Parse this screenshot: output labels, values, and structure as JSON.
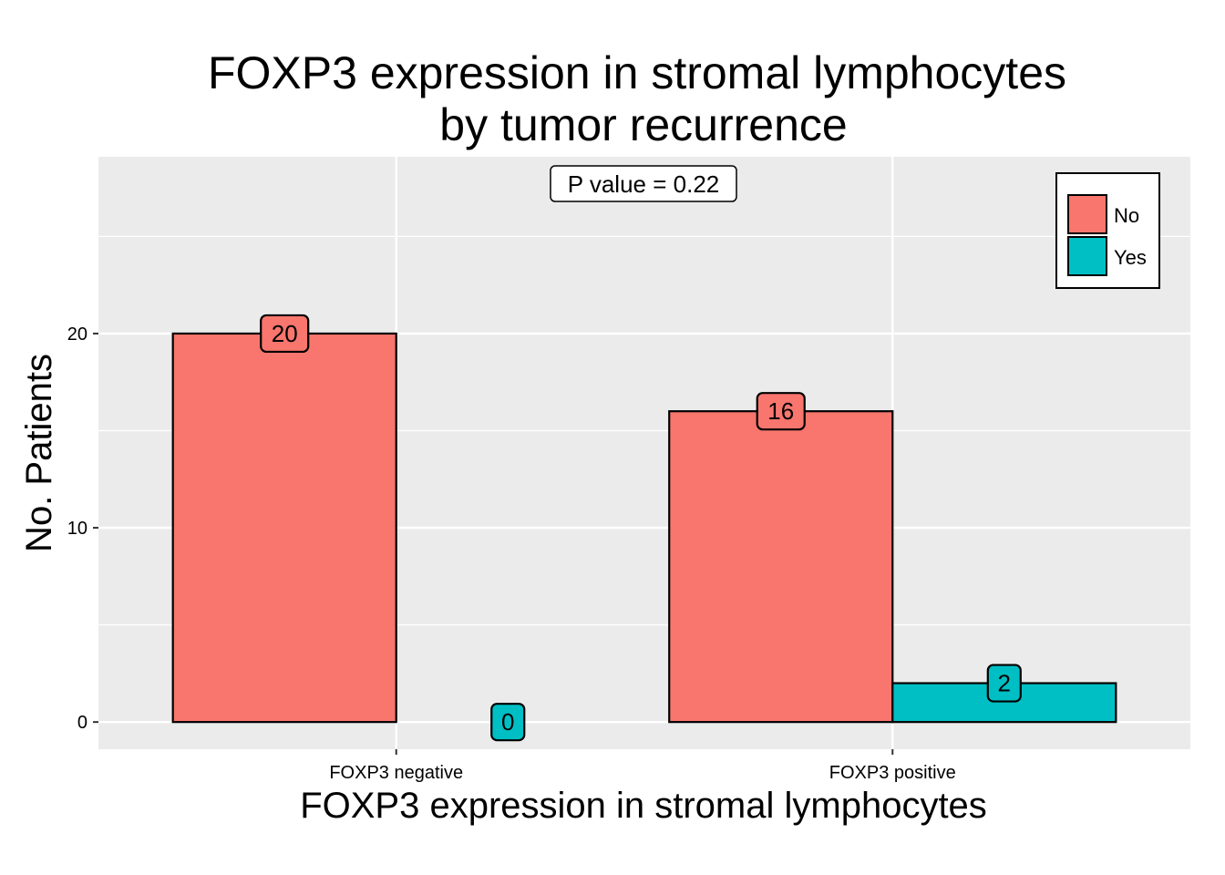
{
  "chart_data": {
    "type": "bar",
    "title": [
      "FOXP3 expression in stromal lymphocytes",
      "by tumor recurrence"
    ],
    "xlabel": "FOXP3 expression in stromal lymphocytes",
    "ylabel": "No. Patients",
    "categories": [
      "FOXP3 negative",
      "FOXP3 positive"
    ],
    "series": [
      {
        "name": "No",
        "values": [
          20,
          16
        ],
        "color": "#F8766D"
      },
      {
        "name": "Yes",
        "values": [
          0,
          2
        ],
        "color": "#00BFC4"
      }
    ],
    "ylim": [
      -1.4,
      29.1
    ],
    "yticks": [
      0,
      10,
      20
    ],
    "grid": true,
    "panel_color": "#EBEBEB",
    "legend_position": "top-right",
    "annotation": "P value = 0.22"
  }
}
